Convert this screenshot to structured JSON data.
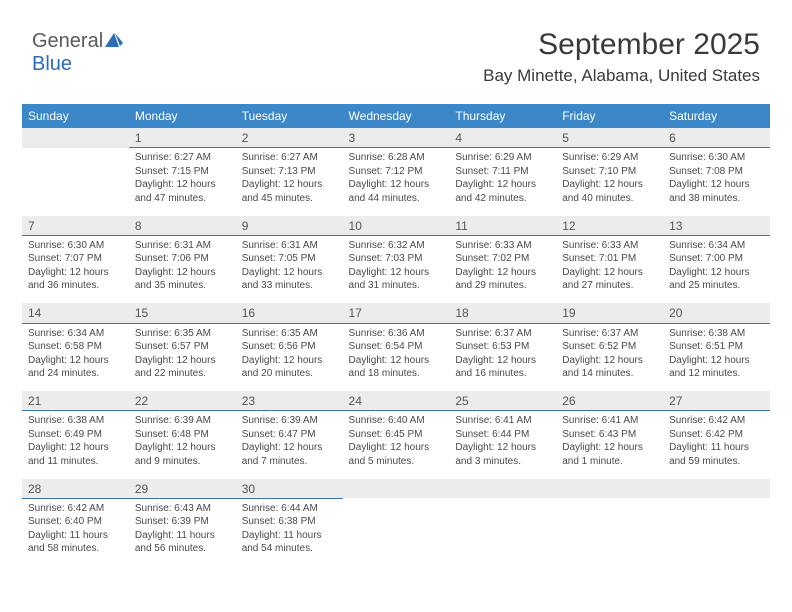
{
  "logo": {
    "part1": "General",
    "part2": "Blue",
    "icon_color": "#2a6db5"
  },
  "header": {
    "month_title": "September 2025",
    "location": "Bay Minette, Alabama, United States",
    "title_fontsize": 30,
    "location_fontsize": 17
  },
  "colors": {
    "header_bg": "#3b87c8",
    "header_text": "#ffffff",
    "daynum_bg": "#ececec",
    "daynum_border": "#3b77a8",
    "body_text": "#4a4a4a",
    "page_bg": "#ffffff"
  },
  "calendar": {
    "columns": [
      "Sunday",
      "Monday",
      "Tuesday",
      "Wednesday",
      "Thursday",
      "Friday",
      "Saturday"
    ],
    "weeks": [
      [
        {
          "day": "",
          "sunrise": "",
          "sunset": "",
          "daylight": ""
        },
        {
          "day": "1",
          "sunrise": "Sunrise: 6:27 AM",
          "sunset": "Sunset: 7:15 PM",
          "daylight": "Daylight: 12 hours and 47 minutes."
        },
        {
          "day": "2",
          "sunrise": "Sunrise: 6:27 AM",
          "sunset": "Sunset: 7:13 PM",
          "daylight": "Daylight: 12 hours and 45 minutes."
        },
        {
          "day": "3",
          "sunrise": "Sunrise: 6:28 AM",
          "sunset": "Sunset: 7:12 PM",
          "daylight": "Daylight: 12 hours and 44 minutes."
        },
        {
          "day": "4",
          "sunrise": "Sunrise: 6:29 AM",
          "sunset": "Sunset: 7:11 PM",
          "daylight": "Daylight: 12 hours and 42 minutes."
        },
        {
          "day": "5",
          "sunrise": "Sunrise: 6:29 AM",
          "sunset": "Sunset: 7:10 PM",
          "daylight": "Daylight: 12 hours and 40 minutes."
        },
        {
          "day": "6",
          "sunrise": "Sunrise: 6:30 AM",
          "sunset": "Sunset: 7:08 PM",
          "daylight": "Daylight: 12 hours and 38 minutes."
        }
      ],
      [
        {
          "day": "7",
          "sunrise": "Sunrise: 6:30 AM",
          "sunset": "Sunset: 7:07 PM",
          "daylight": "Daylight: 12 hours and 36 minutes."
        },
        {
          "day": "8",
          "sunrise": "Sunrise: 6:31 AM",
          "sunset": "Sunset: 7:06 PM",
          "daylight": "Daylight: 12 hours and 35 minutes."
        },
        {
          "day": "9",
          "sunrise": "Sunrise: 6:31 AM",
          "sunset": "Sunset: 7:05 PM",
          "daylight": "Daylight: 12 hours and 33 minutes."
        },
        {
          "day": "10",
          "sunrise": "Sunrise: 6:32 AM",
          "sunset": "Sunset: 7:03 PM",
          "daylight": "Daylight: 12 hours and 31 minutes."
        },
        {
          "day": "11",
          "sunrise": "Sunrise: 6:33 AM",
          "sunset": "Sunset: 7:02 PM",
          "daylight": "Daylight: 12 hours and 29 minutes."
        },
        {
          "day": "12",
          "sunrise": "Sunrise: 6:33 AM",
          "sunset": "Sunset: 7:01 PM",
          "daylight": "Daylight: 12 hours and 27 minutes."
        },
        {
          "day": "13",
          "sunrise": "Sunrise: 6:34 AM",
          "sunset": "Sunset: 7:00 PM",
          "daylight": "Daylight: 12 hours and 25 minutes."
        }
      ],
      [
        {
          "day": "14",
          "sunrise": "Sunrise: 6:34 AM",
          "sunset": "Sunset: 6:58 PM",
          "daylight": "Daylight: 12 hours and 24 minutes."
        },
        {
          "day": "15",
          "sunrise": "Sunrise: 6:35 AM",
          "sunset": "Sunset: 6:57 PM",
          "daylight": "Daylight: 12 hours and 22 minutes."
        },
        {
          "day": "16",
          "sunrise": "Sunrise: 6:35 AM",
          "sunset": "Sunset: 6:56 PM",
          "daylight": "Daylight: 12 hours and 20 minutes."
        },
        {
          "day": "17",
          "sunrise": "Sunrise: 6:36 AM",
          "sunset": "Sunset: 6:54 PM",
          "daylight": "Daylight: 12 hours and 18 minutes."
        },
        {
          "day": "18",
          "sunrise": "Sunrise: 6:37 AM",
          "sunset": "Sunset: 6:53 PM",
          "daylight": "Daylight: 12 hours and 16 minutes."
        },
        {
          "day": "19",
          "sunrise": "Sunrise: 6:37 AM",
          "sunset": "Sunset: 6:52 PM",
          "daylight": "Daylight: 12 hours and 14 minutes."
        },
        {
          "day": "20",
          "sunrise": "Sunrise: 6:38 AM",
          "sunset": "Sunset: 6:51 PM",
          "daylight": "Daylight: 12 hours and 12 minutes."
        }
      ],
      [
        {
          "day": "21",
          "sunrise": "Sunrise: 6:38 AM",
          "sunset": "Sunset: 6:49 PM",
          "daylight": "Daylight: 12 hours and 11 minutes."
        },
        {
          "day": "22",
          "sunrise": "Sunrise: 6:39 AM",
          "sunset": "Sunset: 6:48 PM",
          "daylight": "Daylight: 12 hours and 9 minutes."
        },
        {
          "day": "23",
          "sunrise": "Sunrise: 6:39 AM",
          "sunset": "Sunset: 6:47 PM",
          "daylight": "Daylight: 12 hours and 7 minutes."
        },
        {
          "day": "24",
          "sunrise": "Sunrise: 6:40 AM",
          "sunset": "Sunset: 6:45 PM",
          "daylight": "Daylight: 12 hours and 5 minutes."
        },
        {
          "day": "25",
          "sunrise": "Sunrise: 6:41 AM",
          "sunset": "Sunset: 6:44 PM",
          "daylight": "Daylight: 12 hours and 3 minutes."
        },
        {
          "day": "26",
          "sunrise": "Sunrise: 6:41 AM",
          "sunset": "Sunset: 6:43 PM",
          "daylight": "Daylight: 12 hours and 1 minute."
        },
        {
          "day": "27",
          "sunrise": "Sunrise: 6:42 AM",
          "sunset": "Sunset: 6:42 PM",
          "daylight": "Daylight: 11 hours and 59 minutes."
        }
      ],
      [
        {
          "day": "28",
          "sunrise": "Sunrise: 6:42 AM",
          "sunset": "Sunset: 6:40 PM",
          "daylight": "Daylight: 11 hours and 58 minutes."
        },
        {
          "day": "29",
          "sunrise": "Sunrise: 6:43 AM",
          "sunset": "Sunset: 6:39 PM",
          "daylight": "Daylight: 11 hours and 56 minutes."
        },
        {
          "day": "30",
          "sunrise": "Sunrise: 6:44 AM",
          "sunset": "Sunset: 6:38 PM",
          "daylight": "Daylight: 11 hours and 54 minutes."
        },
        {
          "day": "",
          "sunrise": "",
          "sunset": "",
          "daylight": ""
        },
        {
          "day": "",
          "sunrise": "",
          "sunset": "",
          "daylight": ""
        },
        {
          "day": "",
          "sunrise": "",
          "sunset": "",
          "daylight": ""
        },
        {
          "day": "",
          "sunrise": "",
          "sunset": "",
          "daylight": ""
        }
      ]
    ]
  }
}
